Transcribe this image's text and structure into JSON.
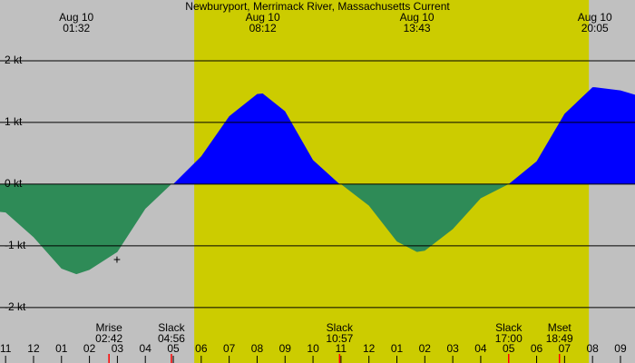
{
  "chart_data": {
    "type": "area",
    "title": "Newburyport, Merrimack River, Massachusetts Current",
    "xlim": [
      -1.2,
      21.52
    ],
    "ylim": [
      -2.9,
      2.985
    ],
    "yticks": [
      {
        "value": 2,
        "label": "2 kt"
      },
      {
        "value": 1,
        "label": "1 kt"
      },
      {
        "value": 0,
        "label": "0 kt"
      },
      {
        "value": -1,
        "label": "-1 kt"
      },
      {
        "value": -2,
        "label": "-2 kt"
      }
    ],
    "xticks": [
      {
        "value": -1,
        "label": "11"
      },
      {
        "value": 0,
        "label": "12"
      },
      {
        "value": 1,
        "label": "01"
      },
      {
        "value": 2,
        "label": "02"
      },
      {
        "value": 3,
        "label": "03"
      },
      {
        "value": 4,
        "label": "04"
      },
      {
        "value": 5,
        "label": "05"
      },
      {
        "value": 6,
        "label": "06"
      },
      {
        "value": 7,
        "label": "07"
      },
      {
        "value": 8,
        "label": "08"
      },
      {
        "value": 9,
        "label": "09"
      },
      {
        "value": 10,
        "label": "10"
      },
      {
        "value": 11,
        "label": "11"
      },
      {
        "value": 12,
        "label": "12"
      },
      {
        "value": 13,
        "label": "01"
      },
      {
        "value": 14,
        "label": "02"
      },
      {
        "value": 15,
        "label": "03"
      },
      {
        "value": 16,
        "label": "04"
      },
      {
        "value": 17,
        "label": "05"
      },
      {
        "value": 18,
        "label": "06"
      },
      {
        "value": 19,
        "label": "07"
      },
      {
        "value": 20,
        "label": "08"
      },
      {
        "value": 21,
        "label": "09"
      }
    ],
    "daylight": [
      5.75,
      19.87
    ],
    "grid": true,
    "flood_color": "#0000ff",
    "ebb_color": "#2e8b57",
    "x": [
      -1.2,
      -1,
      0,
      1,
      1.533,
      2,
      3,
      4,
      4.933,
      5,
      6,
      7,
      8,
      8.2,
      9,
      10,
      10.95,
      11,
      12,
      13,
      13.717,
      14,
      15,
      16,
      17,
      18,
      19,
      20,
      20.083,
      21,
      21.52
    ],
    "values": [
      -0.45,
      -0.46,
      -0.86,
      -1.37,
      -1.46,
      -1.39,
      -1.1,
      -0.4,
      0,
      0.0,
      0.45,
      1.1,
      1.46,
      1.47,
      1.18,
      0.39,
      0,
      0.0,
      -0.35,
      -0.93,
      -1.1,
      -1.08,
      -0.73,
      -0.23,
      0,
      0.37,
      1.14,
      1.57,
      1.57,
      1.52,
      1.45
    ],
    "extremes": [
      {
        "date": "Aug 10",
        "time": "01:32",
        "x": 1.533
      },
      {
        "date": "Aug 10",
        "time": "08:12",
        "x": 8.2
      },
      {
        "date": "Aug 10",
        "time": "13:43",
        "x": 13.717
      },
      {
        "date": "Aug 10",
        "time": "20:05",
        "x": 20.083
      }
    ],
    "events": [
      {
        "label": "Mrise",
        "time": "02:42",
        "x": 2.7
      },
      {
        "label": "Slack",
        "time": "04:56",
        "x": 4.933
      },
      {
        "label": "Slack",
        "time": "10:57",
        "x": 10.95
      },
      {
        "label": "Slack",
        "time": "17:00",
        "x": 17.0
      },
      {
        "label": "Mset",
        "time": "18:49",
        "x": 18.817
      }
    ]
  }
}
